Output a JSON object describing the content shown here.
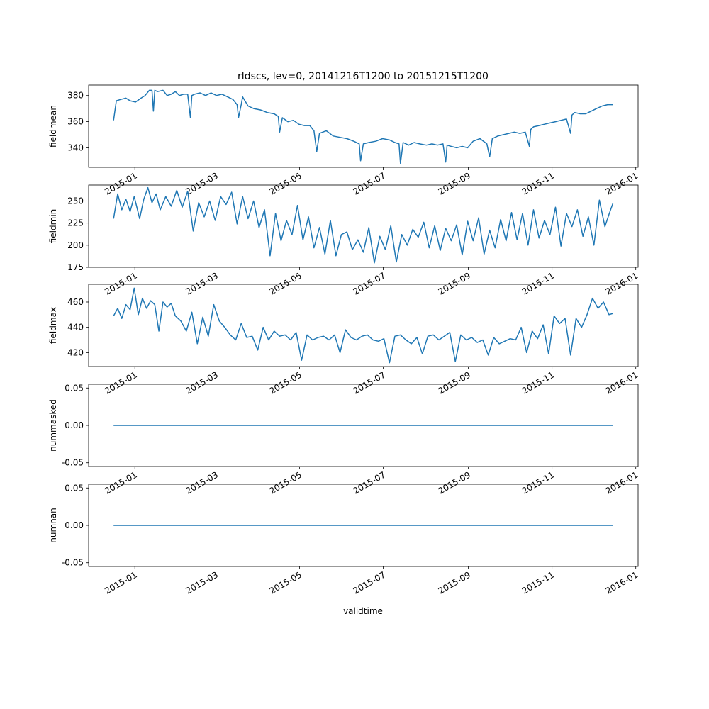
{
  "title": "rldscs, lev=0, 20141216T1200 to 20151215T1200",
  "xlabel": "validtime",
  "line_color": "#1f77b4",
  "chart_data": [
    {
      "type": "line",
      "ylabel": "fieldmean",
      "ylim": [
        325,
        388
      ],
      "yticks": [
        340,
        360,
        380
      ],
      "xlim": [
        "2014-12-16",
        "2015-12-15"
      ],
      "x_tick_labels": [
        "2015-01",
        "2015-03",
        "2015-05",
        "2015-07",
        "2015-09",
        "2015-11",
        "2016-01"
      ],
      "series": [
        {
          "x": [
            "2014-12-16",
            "2014-12-18",
            "2014-12-21",
            "2014-12-25",
            "2014-12-28",
            "2015-01-01",
            "2015-01-05",
            "2015-01-08",
            "2015-01-11",
            "2015-01-13",
            "2015-01-14",
            "2015-01-15",
            "2015-01-17",
            "2015-01-21",
            "2015-01-24",
            "2015-01-27",
            "2015-01-30",
            "2015-02-02",
            "2015-02-05",
            "2015-02-08",
            "2015-02-10",
            "2015-02-11",
            "2015-02-13",
            "2015-02-17",
            "2015-02-21",
            "2015-02-25",
            "2015-03-01",
            "2015-03-05",
            "2015-03-09",
            "2015-03-13",
            "2015-03-16",
            "2015-03-17",
            "2015-03-19",
            "2015-03-20",
            "2015-03-24",
            "2015-03-28",
            "2015-04-02",
            "2015-04-07",
            "2015-04-12",
            "2015-04-15",
            "2015-04-16",
            "2015-04-18",
            "2015-04-22",
            "2015-04-26",
            "2015-04-30",
            "2015-05-04",
            "2015-05-08",
            "2015-05-11",
            "2015-05-13",
            "2015-05-15",
            "2015-05-20",
            "2015-05-25",
            "2015-05-30",
            "2015-06-04",
            "2015-06-09",
            "2015-06-13",
            "2015-06-14",
            "2015-06-16",
            "2015-06-20",
            "2015-06-25",
            "2015-06-30",
            "2015-07-05",
            "2015-07-09",
            "2015-07-12",
            "2015-07-13",
            "2015-07-15",
            "2015-07-19",
            "2015-07-23",
            "2015-07-27",
            "2015-08-01",
            "2015-08-05",
            "2015-08-09",
            "2015-08-13",
            "2015-08-15",
            "2015-08-16",
            "2015-08-19",
            "2015-08-23",
            "2015-08-27",
            "2015-08-31",
            "2015-09-04",
            "2015-09-09",
            "2015-09-14",
            "2015-09-16",
            "2015-09-18",
            "2015-09-22",
            "2015-09-26",
            "2015-09-30",
            "2015-10-04",
            "2015-10-08",
            "2015-10-12",
            "2015-10-15",
            "2015-10-16",
            "2015-10-18",
            "2015-10-22",
            "2015-10-26",
            "2015-10-30",
            "2015-11-03",
            "2015-11-07",
            "2015-11-11",
            "2015-11-14",
            "2015-11-15",
            "2015-11-17",
            "2015-11-21",
            "2015-11-25",
            "2015-11-29",
            "2015-12-03",
            "2015-12-07",
            "2015-12-11",
            "2015-12-15"
          ],
          "y": [
            361,
            376,
            377,
            378,
            376,
            375,
            378,
            380,
            384,
            384,
            368,
            384,
            383,
            384,
            380,
            381,
            383,
            380,
            381,
            381,
            363,
            380,
            381,
            382,
            380,
            382,
            380,
            381,
            379,
            377,
            373,
            363,
            373,
            379,
            372,
            370,
            369,
            367,
            366,
            364,
            352,
            363,
            360,
            361,
            358,
            357,
            357,
            353,
            337,
            351,
            353,
            349,
            348,
            347,
            345,
            343,
            330,
            343,
            344,
            345,
            347,
            346,
            344,
            343,
            328,
            344,
            342,
            344,
            343,
            342,
            343,
            342,
            343,
            329,
            342,
            341,
            340,
            341,
            340,
            345,
            347,
            343,
            333,
            347,
            349,
            350,
            351,
            352,
            351,
            352,
            341,
            354,
            356,
            357,
            358,
            359,
            360,
            361,
            362,
            351,
            365,
            367,
            366,
            366,
            368,
            370,
            372,
            373,
            373
          ]
        }
      ]
    },
    {
      "type": "line",
      "ylabel": "fieldmin",
      "ylim": [
        175,
        268
      ],
      "yticks": [
        175,
        200,
        225,
        250
      ],
      "xlim": [
        "2014-12-16",
        "2015-12-15"
      ],
      "x_tick_labels": [
        "2015-01",
        "2015-03",
        "2015-05",
        "2015-07",
        "2015-09",
        "2015-11",
        "2016-01"
      ],
      "series": [
        {
          "x": [
            "2014-12-16",
            "2014-12-19",
            "2014-12-22",
            "2014-12-25",
            "2014-12-28",
            "2014-12-31",
            "2015-01-04",
            "2015-01-07",
            "2015-01-10",
            "2015-01-13",
            "2015-01-16",
            "2015-01-19",
            "2015-01-23",
            "2015-01-27",
            "2015-01-31",
            "2015-02-04",
            "2015-02-08",
            "2015-02-12",
            "2015-02-16",
            "2015-02-20",
            "2015-02-24",
            "2015-02-28",
            "2015-03-04",
            "2015-03-08",
            "2015-03-12",
            "2015-03-16",
            "2015-03-20",
            "2015-03-24",
            "2015-03-28",
            "2015-04-01",
            "2015-04-05",
            "2015-04-09",
            "2015-04-13",
            "2015-04-17",
            "2015-04-21",
            "2015-04-25",
            "2015-04-29",
            "2015-05-03",
            "2015-05-07",
            "2015-05-11",
            "2015-05-15",
            "2015-05-19",
            "2015-05-23",
            "2015-05-27",
            "2015-05-31",
            "2015-06-04",
            "2015-06-08",
            "2015-06-12",
            "2015-06-16",
            "2015-06-20",
            "2015-06-24",
            "2015-06-28",
            "2015-07-02",
            "2015-07-06",
            "2015-07-10",
            "2015-07-14",
            "2015-07-18",
            "2015-07-22",
            "2015-07-26",
            "2015-07-30",
            "2015-08-03",
            "2015-08-07",
            "2015-08-11",
            "2015-08-15",
            "2015-08-19",
            "2015-08-23",
            "2015-08-27",
            "2015-08-31",
            "2015-09-04",
            "2015-09-08",
            "2015-09-12",
            "2015-09-16",
            "2015-09-20",
            "2015-09-24",
            "2015-09-28",
            "2015-10-02",
            "2015-10-06",
            "2015-10-10",
            "2015-10-14",
            "2015-10-18",
            "2015-10-22",
            "2015-10-26",
            "2015-10-30",
            "2015-11-03",
            "2015-11-07",
            "2015-11-11",
            "2015-11-15",
            "2015-11-19",
            "2015-11-23",
            "2015-11-27",
            "2015-12-01",
            "2015-12-05",
            "2015-12-09",
            "2015-12-12",
            "2015-12-15"
          ],
          "y": [
            230,
            258,
            240,
            252,
            238,
            255,
            230,
            252,
            265,
            248,
            258,
            240,
            255,
            244,
            262,
            243,
            261,
            216,
            248,
            232,
            250,
            228,
            255,
            246,
            260,
            224,
            255,
            230,
            250,
            220,
            240,
            188,
            236,
            205,
            228,
            212,
            245,
            206,
            232,
            197,
            220,
            190,
            228,
            188,
            212,
            215,
            195,
            206,
            192,
            220,
            180,
            210,
            195,
            222,
            181,
            212,
            200,
            218,
            209,
            226,
            197,
            222,
            194,
            219,
            205,
            223,
            189,
            227,
            205,
            231,
            190,
            217,
            197,
            229,
            205,
            237,
            206,
            236,
            200,
            240,
            208,
            228,
            212,
            243,
            199,
            236,
            221,
            240,
            210,
            232,
            200,
            251,
            221,
            235,
            248
          ]
        }
      ]
    },
    {
      "type": "line",
      "ylabel": "fieldmax",
      "ylim": [
        409,
        474
      ],
      "yticks": [
        420,
        440,
        460
      ],
      "xlim": [
        "2014-12-16",
        "2015-12-15"
      ],
      "x_tick_labels": [
        "2015-01",
        "2015-03",
        "2015-05",
        "2015-07",
        "2015-09",
        "2015-11",
        "2016-01"
      ],
      "series": [
        {
          "x": [
            "2014-12-16",
            "2014-12-19",
            "2014-12-22",
            "2014-12-25",
            "2014-12-28",
            "2014-12-31",
            "2015-01-03",
            "2015-01-06",
            "2015-01-09",
            "2015-01-12",
            "2015-01-15",
            "2015-01-18",
            "2015-01-21",
            "2015-01-24",
            "2015-01-27",
            "2015-01-30",
            "2015-02-03",
            "2015-02-07",
            "2015-02-11",
            "2015-02-15",
            "2015-02-19",
            "2015-02-23",
            "2015-02-27",
            "2015-03-03",
            "2015-03-07",
            "2015-03-11",
            "2015-03-15",
            "2015-03-19",
            "2015-03-23",
            "2015-03-27",
            "2015-03-31",
            "2015-04-04",
            "2015-04-08",
            "2015-04-12",
            "2015-04-16",
            "2015-04-20",
            "2015-04-24",
            "2015-04-28",
            "2015-05-02",
            "2015-05-06",
            "2015-05-10",
            "2015-05-14",
            "2015-05-18",
            "2015-05-22",
            "2015-05-26",
            "2015-05-30",
            "2015-06-03",
            "2015-06-07",
            "2015-06-11",
            "2015-06-15",
            "2015-06-19",
            "2015-06-23",
            "2015-06-27",
            "2015-07-01",
            "2015-07-05",
            "2015-07-09",
            "2015-07-13",
            "2015-07-17",
            "2015-07-21",
            "2015-07-25",
            "2015-07-29",
            "2015-08-02",
            "2015-08-06",
            "2015-08-10",
            "2015-08-14",
            "2015-08-18",
            "2015-08-22",
            "2015-08-26",
            "2015-08-30",
            "2015-09-03",
            "2015-09-07",
            "2015-09-11",
            "2015-09-15",
            "2015-09-19",
            "2015-09-23",
            "2015-09-27",
            "2015-10-01",
            "2015-10-05",
            "2015-10-09",
            "2015-10-13",
            "2015-10-17",
            "2015-10-21",
            "2015-10-25",
            "2015-10-29",
            "2015-11-02",
            "2015-11-06",
            "2015-11-10",
            "2015-11-14",
            "2015-11-18",
            "2015-11-22",
            "2015-11-26",
            "2015-11-30",
            "2015-12-04",
            "2015-12-08",
            "2015-12-12",
            "2015-12-15"
          ],
          "y": [
            449,
            455,
            447,
            458,
            454,
            471,
            450,
            463,
            455,
            461,
            458,
            437,
            460,
            456,
            459,
            449,
            445,
            437,
            452,
            427,
            448,
            433,
            458,
            445,
            440,
            434,
            430,
            443,
            432,
            433,
            422,
            440,
            430,
            437,
            433,
            434,
            430,
            436,
            414,
            434,
            430,
            432,
            433,
            430,
            434,
            420,
            438,
            432,
            430,
            433,
            434,
            430,
            429,
            431,
            412,
            433,
            434,
            430,
            427,
            432,
            419,
            433,
            434,
            430,
            433,
            436,
            413,
            434,
            430,
            432,
            428,
            430,
            418,
            432,
            427,
            429,
            431,
            430,
            440,
            420,
            437,
            431,
            442,
            419,
            449,
            443,
            447,
            418,
            447,
            440,
            450,
            463,
            455,
            460,
            450,
            451
          ]
        }
      ]
    },
    {
      "type": "line",
      "ylabel": "nummasked",
      "ylim": [
        -0.055,
        0.055
      ],
      "yticks": [
        -0.05,
        0.0,
        0.05
      ],
      "xlim": [
        "2014-12-16",
        "2015-12-15"
      ],
      "x_tick_labels": [
        "2015-01",
        "2015-03",
        "2015-05",
        "2015-07",
        "2015-09",
        "2015-11",
        "2016-01"
      ],
      "series": [
        {
          "x": [
            "2014-12-16",
            "2015-12-15"
          ],
          "y": [
            0,
            0
          ]
        }
      ]
    },
    {
      "type": "line",
      "ylabel": "numnan",
      "ylim": [
        -0.055,
        0.055
      ],
      "yticks": [
        -0.05,
        0.0,
        0.05
      ],
      "xlim": [
        "2014-12-16",
        "2015-12-15"
      ],
      "x_tick_labels": [
        "2015-01",
        "2015-03",
        "2015-05",
        "2015-07",
        "2015-09",
        "2015-11",
        "2016-01"
      ],
      "series": [
        {
          "x": [
            "2014-12-16",
            "2015-12-15"
          ],
          "y": [
            0,
            0
          ]
        }
      ]
    }
  ]
}
